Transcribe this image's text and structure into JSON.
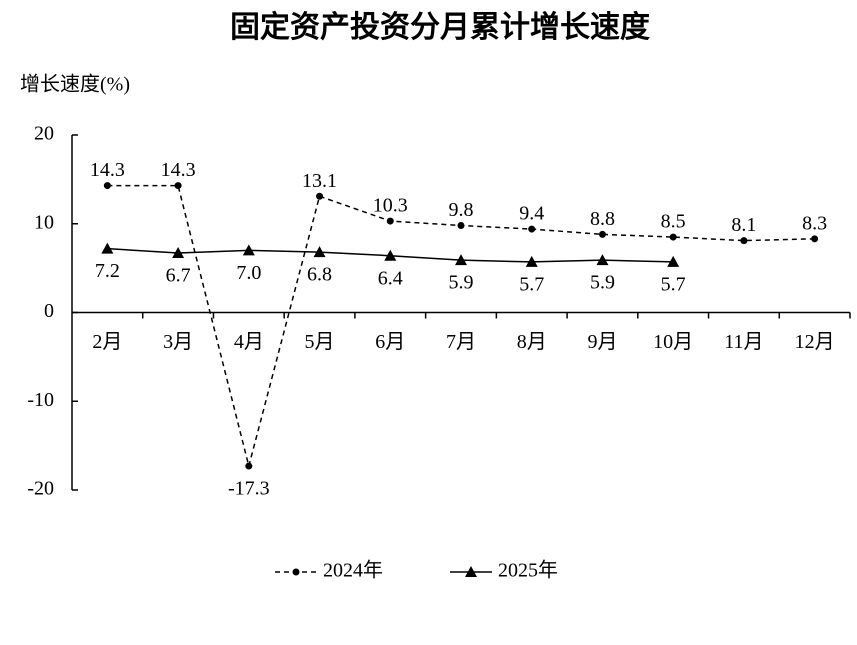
{
  "chart_data": {
    "type": "line",
    "title": "固定资产投资分月累计增长速度",
    "y_label": "增长速度(%)",
    "categories": [
      "2月",
      "3月",
      "4月",
      "5月",
      "6月",
      "7月",
      "8月",
      "9月",
      "10月",
      "11月",
      "12月"
    ],
    "series": [
      {
        "name": "2024年",
        "color": "#000000",
        "dashed": true,
        "marker": "circle",
        "values": [
          14.3,
          14.3,
          -17.3,
          13.1,
          10.3,
          9.8,
          9.4,
          8.8,
          8.5,
          8.1,
          8.3
        ]
      },
      {
        "name": "2025年",
        "color": "#000000",
        "dashed": false,
        "marker": "triangle",
        "values": [
          7.2,
          6.7,
          7.0,
          6.8,
          6.4,
          5.9,
          5.7,
          5.9,
          5.7,
          null,
          null
        ],
        "value_labels": [
          "7.2",
          "6.7",
          "7.0",
          "6.8",
          "6.4",
          "5.9",
          "5.7",
          "5.9",
          "5.7",
          null,
          null
        ]
      }
    ],
    "ylim": [
      -20,
      20
    ],
    "yticks": [
      20,
      10,
      0,
      -10,
      -20
    ],
    "grid": false,
    "legend": "bottom"
  }
}
